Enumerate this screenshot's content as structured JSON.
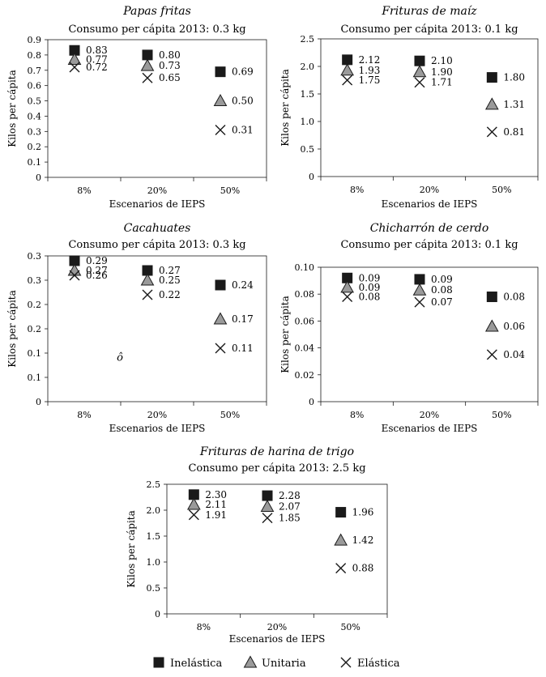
{
  "legend": [
    {
      "key": "inelastica",
      "label": "Inelástica",
      "marker": "square"
    },
    {
      "key": "unitaria",
      "label": "Unitaria",
      "marker": "triangle"
    },
    {
      "key": "elastica",
      "label": "Elástica",
      "marker": "x"
    }
  ],
  "colors": {
    "square_fill": "#1a1a1a",
    "triangle_fill": "#9a9a9a",
    "stroke": "#1a1a1a"
  },
  "chart_data": [
    {
      "type": "scatter",
      "title": "Papas fritas",
      "subtitle": "Consumo per cápita 2013: 0.3 kg",
      "xlabel": "Escenarios de IEPS",
      "ylabel": "Kilos per cápita",
      "categories": [
        "8%",
        "20%",
        "50%"
      ],
      "ylim": [
        0,
        0.9
      ],
      "yticks": [
        0,
        0.1,
        0.2,
        0.3,
        0.4,
        0.5,
        0.6,
        0.7,
        0.8,
        0.9
      ],
      "ytick_labels": [
        "0",
        "0.1",
        "0.2",
        "0.3",
        "0.4",
        "0.5",
        "0.6",
        "0.7",
        "0.8",
        "0.9"
      ],
      "series": [
        {
          "name": "Inelástica",
          "values": [
            0.83,
            0.8,
            0.69
          ],
          "labels": [
            "0.83",
            "0.80",
            "0.69"
          ]
        },
        {
          "name": "Unitaria",
          "values": [
            0.77,
            0.73,
            0.5
          ],
          "labels": [
            "0.77",
            "0.73",
            "0.50"
          ]
        },
        {
          "name": "Elástica",
          "values": [
            0.72,
            0.65,
            0.31
          ],
          "labels": [
            "0.72",
            "0.65",
            "0.31"
          ]
        }
      ],
      "annotation": ""
    },
    {
      "type": "scatter",
      "title": "Frituras de maíz",
      "subtitle": "Consumo per cápita 2013: 0.1 kg",
      "xlabel": "Escenarios de IEPS",
      "ylabel": "Kilos per cápita",
      "categories": [
        "8%",
        "20%",
        "50%"
      ],
      "ylim": [
        0,
        2.5
      ],
      "yticks": [
        0,
        0.5,
        1.0,
        1.5,
        2.0,
        2.5
      ],
      "ytick_labels": [
        "0",
        "0.5",
        "1.0",
        "1.5",
        "2.0",
        "2.5"
      ],
      "series": [
        {
          "name": "Inelástica",
          "values": [
            2.12,
            2.1,
            1.8
          ],
          "labels": [
            "2.12",
            "2.10",
            "1.80"
          ]
        },
        {
          "name": "Unitaria",
          "values": [
            1.93,
            1.9,
            1.31
          ],
          "labels": [
            "1.93",
            "1.90",
            "1.31"
          ]
        },
        {
          "name": "Elástica",
          "values": [
            1.75,
            1.71,
            0.81
          ],
          "labels": [
            "1.75",
            "1.71",
            "0.81"
          ]
        }
      ],
      "annotation": ""
    },
    {
      "type": "scatter",
      "title": "Cacahuates",
      "subtitle": "Consumo per cápita 2013: 0.3 kg",
      "xlabel": "Escenarios de IEPS",
      "ylabel": "Kilos per cápita",
      "categories": [
        "8%",
        "20%",
        "50%"
      ],
      "ylim": [
        0,
        0.3
      ],
      "yticks": [
        0,
        0.05,
        0.1,
        0.15,
        0.2,
        0.25,
        0.3
      ],
      "ytick_labels": [
        "0",
        "0.1",
        "0.1",
        "0.2",
        "0.2",
        "0.3",
        "0.3"
      ],
      "series": [
        {
          "name": "Inelástica",
          "values": [
            0.29,
            0.27,
            0.24
          ],
          "labels": [
            "0.29",
            "0.27",
            "0.24"
          ]
        },
        {
          "name": "Unitaria",
          "values": [
            0.27,
            0.25,
            0.17
          ],
          "labels": [
            "0.27",
            "0.25",
            "0.17"
          ]
        },
        {
          "name": "Elástica",
          "values": [
            0.26,
            0.22,
            0.11
          ],
          "labels": [
            "0.26",
            "0.22",
            "0.11"
          ]
        }
      ],
      "annotation": "ô"
    },
    {
      "type": "scatter",
      "title": "Chicharrón de cerdo",
      "subtitle": "Consumo per cápita 2013: 0.1 kg",
      "xlabel": "Escenarios de IEPS",
      "ylabel": "Kilos per cápita",
      "categories": [
        "8%",
        "20%",
        "50%"
      ],
      "ylim": [
        0,
        0.1
      ],
      "yticks": [
        0,
        0.02,
        0.04,
        0.06,
        0.08,
        0.1
      ],
      "ytick_labels": [
        "0",
        "0.02",
        "0.04",
        "0.06",
        "0.08",
        "0.10"
      ],
      "series": [
        {
          "name": "Inelástica",
          "values": [
            0.092,
            0.091,
            0.078
          ],
          "labels": [
            "0.09",
            "0.09",
            "0.08"
          ]
        },
        {
          "name": "Unitaria",
          "values": [
            0.085,
            0.083,
            0.056
          ],
          "labels": [
            "0.09",
            "0.08",
            "0.06"
          ]
        },
        {
          "name": "Elástica",
          "values": [
            0.078,
            0.074,
            0.035
          ],
          "labels": [
            "0.08",
            "0.07",
            "0.04"
          ]
        }
      ],
      "annotation": ""
    },
    {
      "type": "scatter",
      "title": "Frituras de harina de trigo",
      "subtitle": "Consumo per cápita 2013: 2.5 kg",
      "xlabel": "Escenarios de IEPS",
      "ylabel": "Kilos per cápita",
      "categories": [
        "8%",
        "20%",
        "50%"
      ],
      "ylim": [
        0,
        2.5
      ],
      "yticks": [
        0,
        0.5,
        1.0,
        1.5,
        2.0,
        2.5
      ],
      "ytick_labels": [
        "0",
        "0.5",
        "1.0",
        "1.5",
        "2.0",
        "2.5"
      ],
      "series": [
        {
          "name": "Inelástica",
          "values": [
            2.3,
            2.28,
            1.96
          ],
          "labels": [
            "2.30",
            "2.28",
            "1.96"
          ]
        },
        {
          "name": "Unitaria",
          "values": [
            2.11,
            2.07,
            1.42
          ],
          "labels": [
            "2.11",
            "2.07",
            "1.42"
          ]
        },
        {
          "name": "Elástica",
          "values": [
            1.91,
            1.85,
            0.88
          ],
          "labels": [
            "1.91",
            "1.85",
            "0.88"
          ]
        }
      ],
      "annotation": ""
    }
  ]
}
